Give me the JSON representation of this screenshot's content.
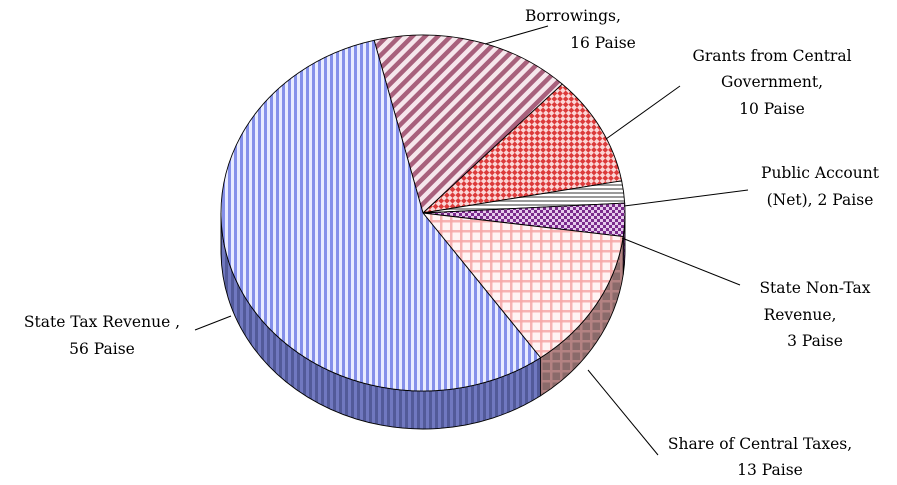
{
  "chart_data": {
    "type": "pie",
    "style": "3d-exploded-pie",
    "title": "",
    "unit": "Paise",
    "slices": [
      {
        "name": "Borrowings",
        "value": 16,
        "label_lines": [
          "Borrowings,",
          "16 Paise"
        ],
        "color": "#b0728a",
        "pattern": "diagonal-stripes"
      },
      {
        "name": "Grants from Central Government",
        "value": 10,
        "label_lines": [
          "Grants from Central",
          "Government,",
          "10 Paise"
        ],
        "color": "#e24a4a",
        "pattern": "checker"
      },
      {
        "name": "Public Account (Net)",
        "value": 2,
        "label_lines": [
          "Public Account",
          "(Net), 2 Paise"
        ],
        "color": "#bdbdbd",
        "pattern": "horizontal-stripes"
      },
      {
        "name": "State Non-Tax Revenue",
        "value": 3,
        "label_lines": [
          "State Non-Tax",
          "Revenue,",
          "3 Paise"
        ],
        "color": "#8e3a9e",
        "pattern": "dense-checker"
      },
      {
        "name": "Share of Central Taxes",
        "value": 13,
        "label_lines": [
          "Share of Central Taxes,",
          "13 Paise"
        ],
        "color": "#f59a9a",
        "pattern": "grid"
      },
      {
        "name": "State Tax Revenue",
        "value": 56,
        "label_lines": [
          "State Tax Revenue ,",
          "56 Paise"
        ],
        "color": "#8c97ee",
        "pattern": "vertical-stripes"
      }
    ]
  }
}
